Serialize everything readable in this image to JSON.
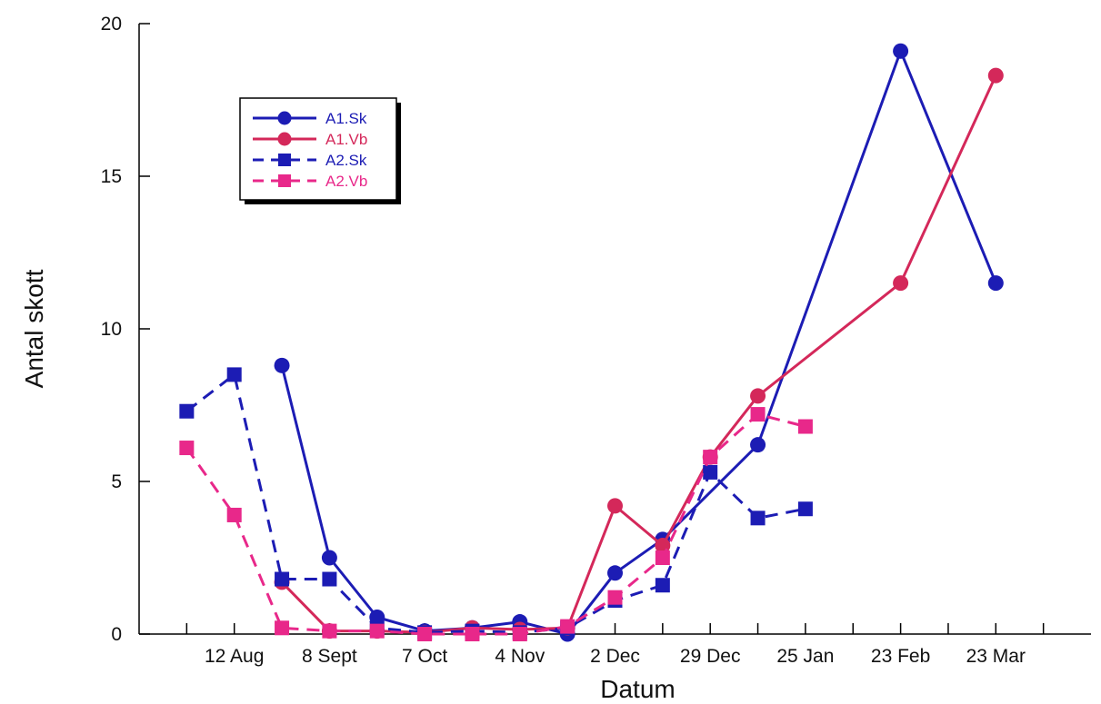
{
  "chart_data": {
    "type": "line",
    "title": "",
    "xlabel": "Datum",
    "ylabel": "Antal skott",
    "ylim": [
      0,
      20
    ],
    "yticks": [
      "0",
      "5",
      "10",
      "15",
      "20"
    ],
    "x_tick_positions": [
      0.5,
      1,
      1.5,
      2,
      2.5,
      3,
      3.5,
      4,
      4.5,
      5,
      5.5,
      6,
      6.5,
      7,
      7.5,
      8,
      8.5,
      9,
      9.5
    ],
    "x_tick_labels": [
      {
        "pos": 1,
        "label": "12 Aug"
      },
      {
        "pos": 2,
        "label": "8 Sept"
      },
      {
        "pos": 3,
        "label": "7 Oct"
      },
      {
        "pos": 4,
        "label": "4 Nov"
      },
      {
        "pos": 5,
        "label": "2 Dec"
      },
      {
        "pos": 6,
        "label": "29 Dec"
      },
      {
        "pos": 7,
        "label": "25 Jan"
      },
      {
        "pos": 8,
        "label": "23 Feb"
      },
      {
        "pos": 9,
        "label": "23 Mar"
      }
    ],
    "xlim": [
      0,
      10
    ],
    "grid": false,
    "legend_position": "top-left",
    "series": [
      {
        "name": "A1.Sk",
        "color": "#1c1cb4",
        "marker": "circle",
        "dash": "solid",
        "points": [
          [
            1.5,
            8.8
          ],
          [
            2,
            2.5
          ],
          [
            2.5,
            0.55
          ],
          [
            3,
            0.1
          ],
          [
            3.5,
            0.2
          ],
          [
            4,
            0.4
          ],
          [
            4.5,
            0.0
          ],
          [
            5,
            2.0
          ],
          [
            5.5,
            3.1
          ],
          [
            6.5,
            6.2
          ],
          [
            8,
            19.1
          ],
          [
            9,
            11.5
          ]
        ]
      },
      {
        "name": "A1.Vb",
        "color": "#d4285a",
        "marker": "circle",
        "dash": "solid",
        "points": [
          [
            1.5,
            1.7
          ],
          [
            2,
            0.1
          ],
          [
            2.5,
            0.1
          ],
          [
            3,
            0.05
          ],
          [
            3.5,
            0.2
          ],
          [
            4,
            0.15
          ],
          [
            4.5,
            0.2
          ],
          [
            5,
            4.2
          ],
          [
            5.5,
            2.9
          ],
          [
            6,
            5.8
          ],
          [
            6.5,
            7.8
          ],
          [
            8,
            11.5
          ],
          [
            9,
            18.3
          ]
        ]
      },
      {
        "name": "A2.Sk",
        "color": "#1c1cb4",
        "marker": "square",
        "dash": "dashed",
        "points": [
          [
            0.5,
            7.3
          ],
          [
            1,
            8.5
          ],
          [
            1.5,
            1.8
          ],
          [
            2,
            1.8
          ],
          [
            2.5,
            0.2
          ],
          [
            3,
            0.05
          ],
          [
            3.5,
            0.1
          ],
          [
            4,
            0.05
          ],
          [
            4.5,
            0.2
          ],
          [
            5,
            1.1
          ],
          [
            5.5,
            1.6
          ],
          [
            6,
            5.3
          ],
          [
            6.5,
            3.8
          ],
          [
            7,
            4.1
          ]
        ]
      },
      {
        "name": "A2.Vb",
        "color": "#e8288a",
        "marker": "square",
        "dash": "dashed",
        "points": [
          [
            0.5,
            6.1
          ],
          [
            1,
            3.9
          ],
          [
            1.5,
            0.2
          ],
          [
            2,
            0.1
          ],
          [
            2.5,
            0.1
          ],
          [
            3,
            0.0
          ],
          [
            3.5,
            0.0
          ],
          [
            4,
            0.0
          ],
          [
            4.5,
            0.25
          ],
          [
            5,
            1.2
          ],
          [
            5.5,
            2.5
          ],
          [
            6,
            5.8
          ],
          [
            6.5,
            7.2
          ],
          [
            7,
            6.8
          ]
        ]
      }
    ]
  }
}
